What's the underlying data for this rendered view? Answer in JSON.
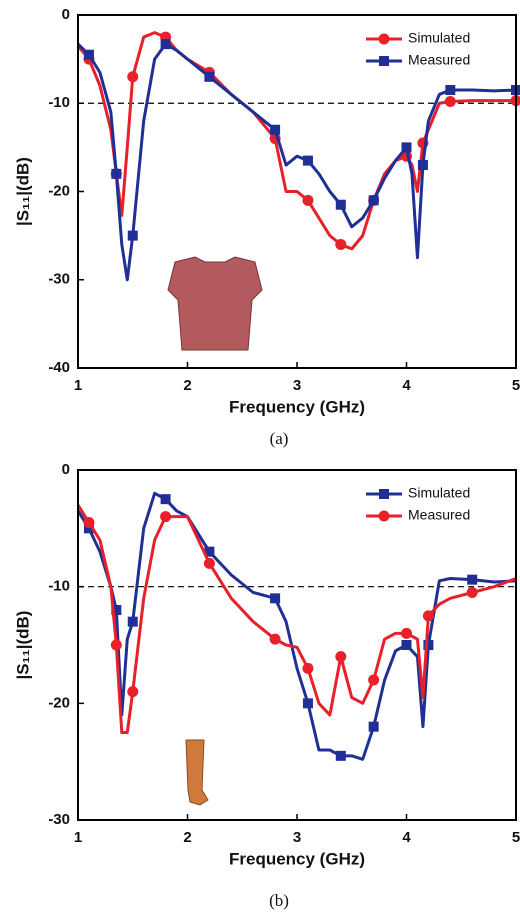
{
  "chart_data": [
    {
      "type": "line",
      "x_label": "Frequency (GHz)",
      "y_label": "|S₁₁|(dB)",
      "caption": "(a)",
      "xlim": [
        1,
        5
      ],
      "xticks": [
        1,
        2,
        3,
        4,
        5
      ],
      "ylim": [
        -40,
        0
      ],
      "yticks": [
        0,
        -10,
        -20,
        -30,
        -40
      ],
      "reference_line": -10,
      "legend": "top-right",
      "x": [
        1,
        1.1,
        1.2,
        1.3,
        1.35,
        1.4,
        1.45,
        1.5,
        1.6,
        1.7,
        1.8,
        1.9,
        2.0,
        2.2,
        2.4,
        2.6,
        2.8,
        2.9,
        3.0,
        3.1,
        3.2,
        3.3,
        3.4,
        3.5,
        3.6,
        3.7,
        3.8,
        3.9,
        4.0,
        4.05,
        4.1,
        4.15,
        4.2,
        4.3,
        4.4,
        4.6,
        4.8,
        5.0
      ],
      "series": [
        {
          "name": "Simulated",
          "color": "#e8202a",
          "marker": "circle",
          "values": [
            -3.5,
            -5,
            -8,
            -13,
            -18,
            -22.7,
            -15,
            -7,
            -2.5,
            -2,
            -2.5,
            -4,
            -5,
            -6.5,
            -9,
            -11,
            -14,
            -20,
            -20,
            -21,
            -23,
            -25,
            -26,
            -26.5,
            -25,
            -21,
            -18,
            -16.5,
            -16,
            -17,
            -20,
            -14.5,
            -13,
            -10,
            -9.8,
            -9.7,
            -9.7,
            -9.7
          ]
        },
        {
          "name": "Measured",
          "color": "#1f2f96",
          "marker": "square",
          "values": [
            -3.3,
            -4.5,
            -6.5,
            -11,
            -18,
            -26,
            -30,
            -25,
            -12,
            -5,
            -3.3,
            -4,
            -5,
            -7,
            -9,
            -11,
            -13,
            -17,
            -16,
            -16.5,
            -18,
            -20,
            -21.5,
            -24,
            -23,
            -21,
            -18.5,
            -16.5,
            -15,
            -18,
            -27.5,
            -17,
            -12,
            -9,
            -8.5,
            -8.5,
            -8.6,
            -8.5
          ]
        }
      ]
    },
    {
      "type": "line",
      "x_label": "Frequency (GHz)",
      "y_label": "|S₁₁|(dB)",
      "caption": "(b)",
      "xlim": [
        1,
        5
      ],
      "xticks": [
        1,
        2,
        3,
        4,
        5
      ],
      "ylim": [
        -30,
        0
      ],
      "yticks": [
        0,
        -10,
        -20,
        -30
      ],
      "reference_line": -10,
      "legend": "top-right",
      "x": [
        1,
        1.1,
        1.2,
        1.3,
        1.35,
        1.4,
        1.45,
        1.5,
        1.6,
        1.7,
        1.8,
        1.9,
        2.0,
        2.2,
        2.4,
        2.6,
        2.8,
        2.9,
        3.0,
        3.1,
        3.2,
        3.3,
        3.4,
        3.5,
        3.6,
        3.7,
        3.8,
        3.9,
        4.0,
        4.1,
        4.15,
        4.2,
        4.3,
        4.4,
        4.6,
        4.8,
        5.0
      ],
      "series": [
        {
          "name": "Simulated",
          "color": "#1f2f96",
          "marker": "square",
          "values": [
            -3.5,
            -5,
            -7,
            -10,
            -12,
            -21,
            -14.5,
            -13,
            -5,
            -2,
            -2.5,
            -3.5,
            -4,
            -7,
            -9,
            -10.5,
            -11,
            -13,
            -17,
            -20,
            -24,
            -24,
            -24.5,
            -24.5,
            -24.8,
            -22,
            -18,
            -15.5,
            -15,
            -16,
            -22,
            -15,
            -9.5,
            -9.3,
            -9.4,
            -9.6,
            -9.5
          ]
        },
        {
          "name": "Measured",
          "color": "#e8202a",
          "marker": "circle",
          "values": [
            -3,
            -4.5,
            -6,
            -10,
            -15,
            -22.5,
            -22.5,
            -19,
            -11,
            -6,
            -4,
            -4,
            -4,
            -8,
            -11,
            -13,
            -14.5,
            -15,
            -15.2,
            -17,
            -20,
            -21,
            -16,
            -19.5,
            -20,
            -18,
            -14.5,
            -14,
            -14,
            -14.5,
            -19.5,
            -12.5,
            -11.5,
            -11,
            -10.5,
            -10,
            -9.3
          ]
        }
      ]
    }
  ]
}
